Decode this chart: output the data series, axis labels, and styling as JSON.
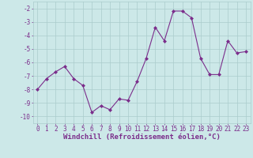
{
  "x": [
    0,
    1,
    2,
    3,
    4,
    5,
    6,
    7,
    8,
    9,
    10,
    11,
    12,
    13,
    14,
    15,
    16,
    17,
    18,
    19,
    20,
    21,
    22,
    23
  ],
  "y": [
    -8.0,
    -7.2,
    -6.7,
    -6.3,
    -7.2,
    -7.7,
    -9.7,
    -9.2,
    -9.5,
    -8.7,
    -8.8,
    -7.4,
    -5.7,
    -3.4,
    -4.4,
    -2.2,
    -2.2,
    -2.7,
    -5.7,
    -6.9,
    -6.9,
    -4.4,
    -5.3,
    -5.2
  ],
  "line_color": "#7b2d8b",
  "marker": "D",
  "marker_size": 2.0,
  "bg_color": "#cce8e8",
  "grid_color": "#aacccc",
  "xlabel": "Windchill (Refroidissement éolien,°C)",
  "ylabel": "",
  "ylim": [
    -10.5,
    -1.5
  ],
  "xlim": [
    -0.5,
    23.5
  ],
  "yticks": [
    -10,
    -9,
    -8,
    -7,
    -6,
    -5,
    -4,
    -3,
    -2
  ],
  "xticks": [
    0,
    1,
    2,
    3,
    4,
    5,
    6,
    7,
    8,
    9,
    10,
    11,
    12,
    13,
    14,
    15,
    16,
    17,
    18,
    19,
    20,
    21,
    22,
    23
  ],
  "tick_color": "#7b2d8b",
  "label_color": "#7b2d8b",
  "font_size": 5.5,
  "xlabel_fontsize": 6.5
}
